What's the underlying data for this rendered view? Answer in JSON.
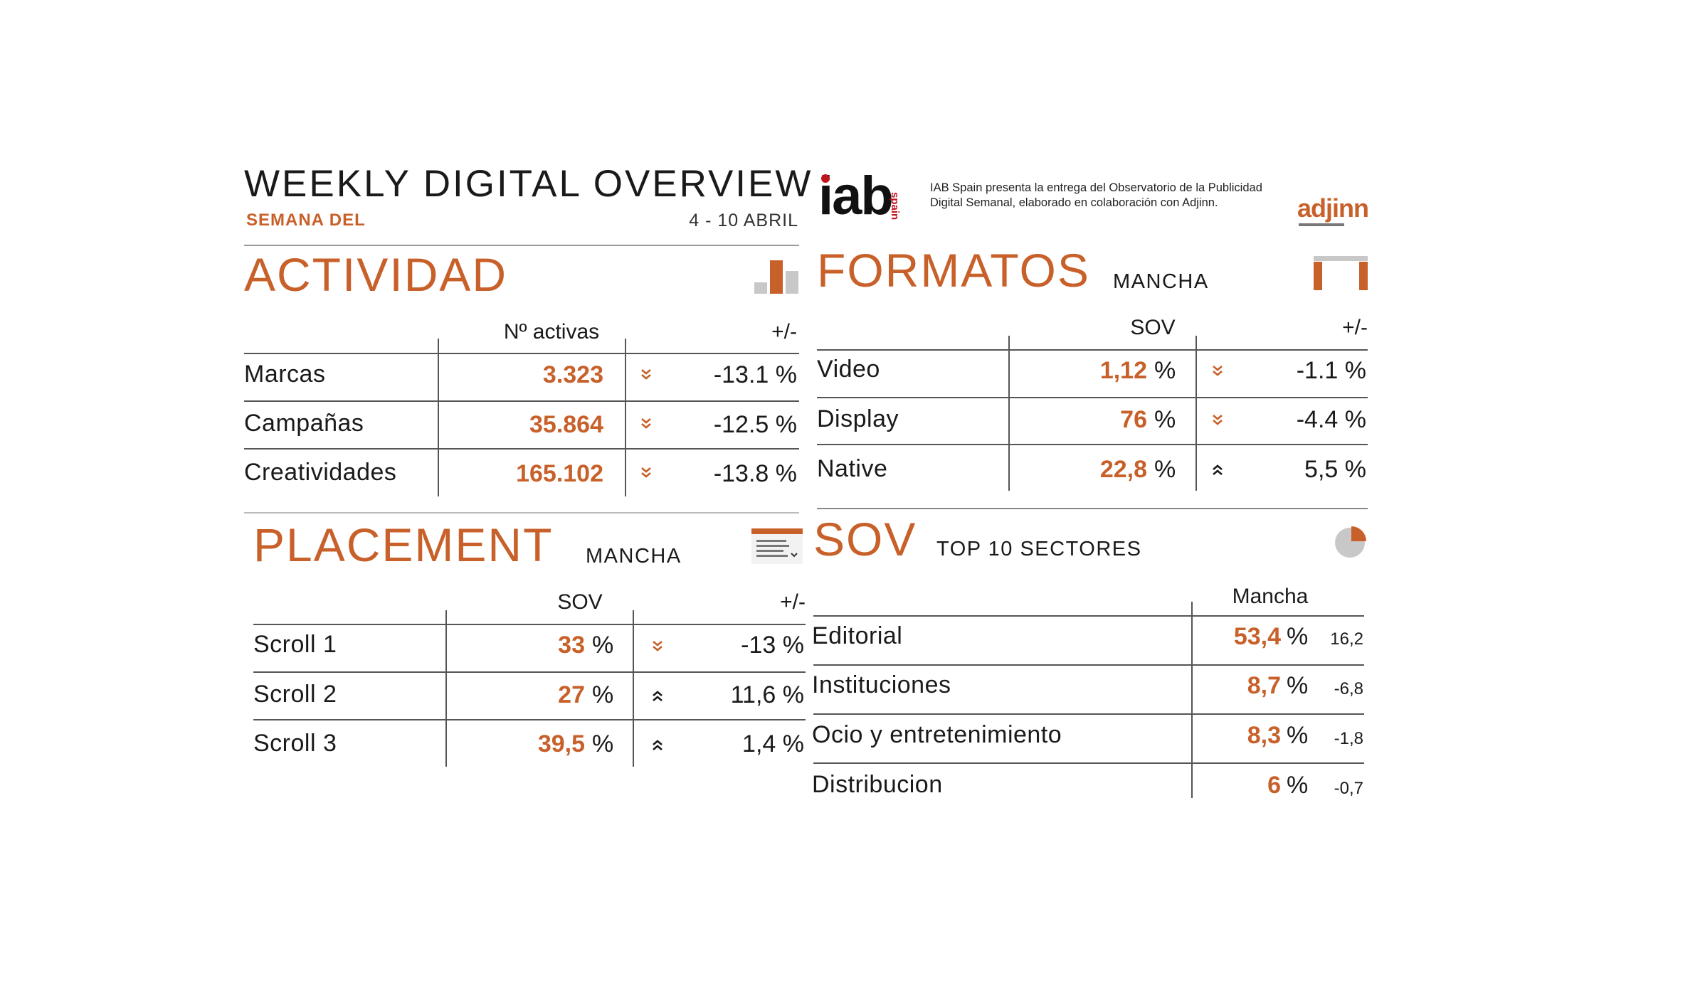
{
  "header": {
    "title": "WEEKLY DIGITAL OVERVIEW",
    "week_label": "SEMANA DEL",
    "date_range": "4 - 10 ABRIL",
    "iab_logo": "iab",
    "iab_logo_sub": "spain",
    "iab_description": "IAB Spain presenta la entrega del Observatorio de la Publicidad Digital Semanal, elaborado en colaboración con Adjinn.",
    "adjinn_logo": "adjinn"
  },
  "colors": {
    "accent": "#c8602a",
    "text": "#1a1a1a",
    "icon_gray": "#c8c8c8"
  },
  "actividad": {
    "title": "ACTIVIDAD",
    "icon": "bar-chart-icon",
    "col_value": "Nº activas",
    "col_change": "+/-",
    "rows": [
      {
        "label": "Marcas",
        "value": "3.323",
        "trend": "down",
        "change": "-13.1 %"
      },
      {
        "label": "Campañas",
        "value": "35.864",
        "trend": "down",
        "change": "-12.5 %"
      },
      {
        "label": "Creatividades",
        "value": "165.102",
        "trend": "down",
        "change": "-13.8 %"
      }
    ]
  },
  "formatos": {
    "title": "FORMATOS",
    "subtitle": "MANCHA",
    "icon": "format-frame-icon",
    "col_value": "SOV",
    "col_change": "+/-",
    "rows": [
      {
        "label": "Video",
        "value": "1,12",
        "unit": "%",
        "trend": "down",
        "change": "-1.1 %"
      },
      {
        "label": "Display",
        "value": "76",
        "unit": "%",
        "trend": "down",
        "change": "-4.4 %"
      },
      {
        "label": "Native",
        "value": "22,8",
        "unit": "%",
        "trend": "up",
        "change": "5,5 %"
      }
    ]
  },
  "placement": {
    "title": "PLACEMENT",
    "subtitle": "MANCHA",
    "icon": "page-scroll-icon",
    "col_value": "SOV",
    "col_change": "+/-",
    "rows": [
      {
        "label": "Scroll 1",
        "value": "33",
        "unit": "%",
        "trend": "down",
        "change": "-13 %"
      },
      {
        "label": "Scroll 2",
        "value": "27",
        "unit": "%",
        "trend": "up",
        "change": "11,6 %"
      },
      {
        "label": "Scroll 3",
        "value": "39,5",
        "unit": "%",
        "trend": "up",
        "change": "1,4 %"
      }
    ]
  },
  "sov": {
    "title": "SOV",
    "subtitle": "TOP 10 SECTORES",
    "icon": "pie-chart-icon",
    "col_value": "Mancha",
    "rows": [
      {
        "label": "Editorial",
        "value": "53,4",
        "unit": "%",
        "change": "16,2"
      },
      {
        "label": "Instituciones",
        "value": "8,7",
        "unit": "%",
        "change": "-6,8"
      },
      {
        "label": "Ocio y entretenimiento",
        "value": "8,3",
        "unit": "%",
        "change": "-1,8"
      },
      {
        "label": "Distribucion",
        "value": "6",
        "unit": "%",
        "change": "-0,7"
      }
    ]
  }
}
